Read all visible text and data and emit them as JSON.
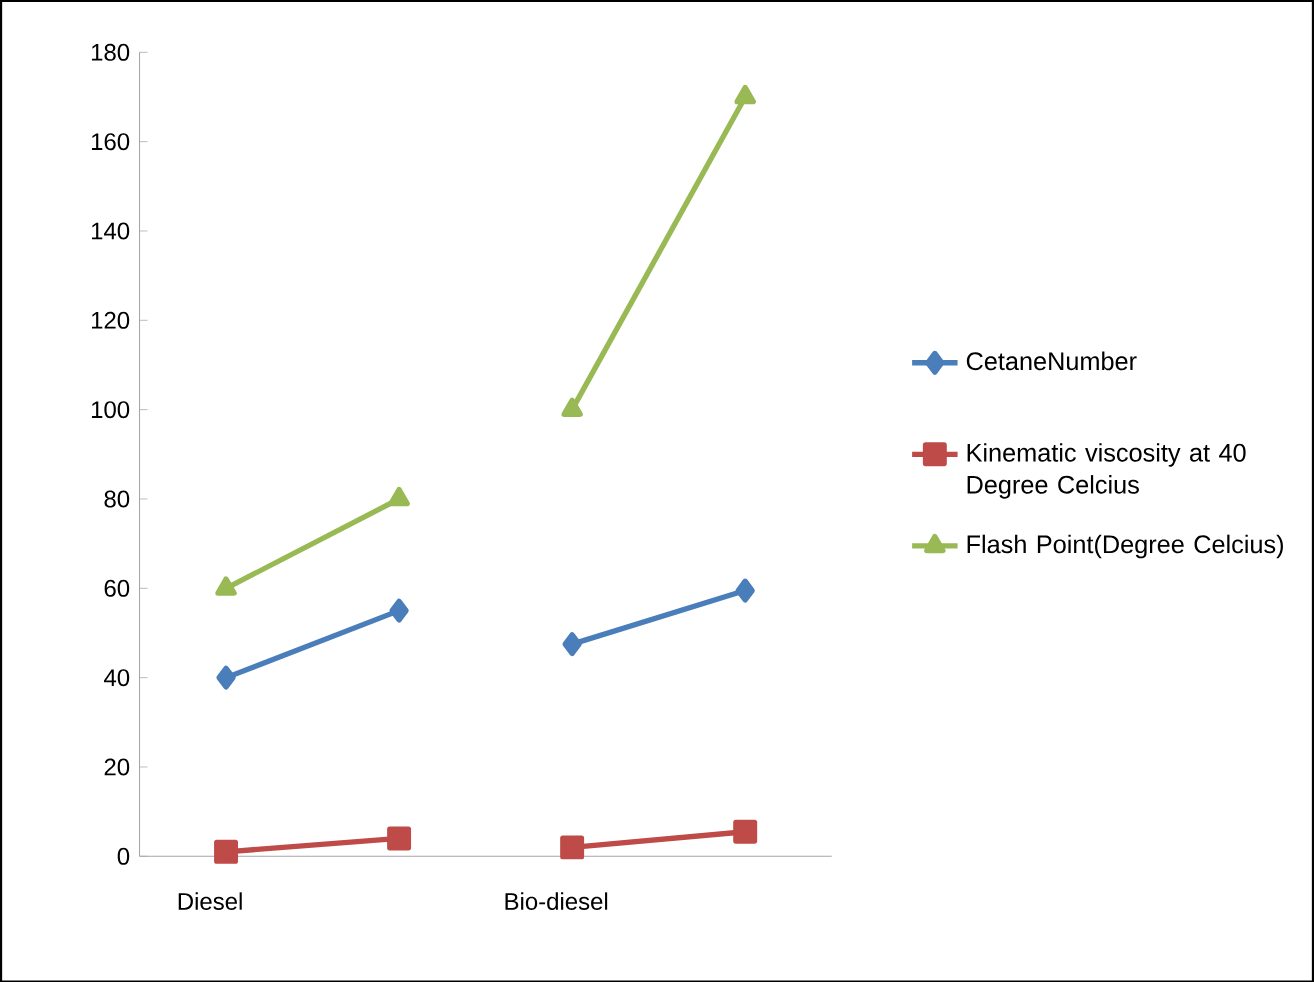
{
  "chart_data": {
    "type": "line",
    "categories": [
      "Diesel",
      null,
      "Bio-diesel",
      null
    ],
    "series": [
      {
        "name": "CetaneNumber",
        "color": "#4a7ebb",
        "marker": "diamond",
        "values": [
          40,
          55,
          47.5,
          59.5
        ]
      },
      {
        "name": "Kinematic viscosity at 40 Degree Celcius",
        "color": "#be4b48",
        "marker": "square",
        "values": [
          1,
          4,
          2,
          5.5
        ]
      },
      {
        "name": "Flash Point(Degree Celcius)",
        "color": "#98b954",
        "marker": "triangle",
        "values": [
          60,
          80,
          100,
          170
        ]
      }
    ],
    "ylim": [
      0,
      180
    ],
    "yticks": [
      0,
      20,
      40,
      60,
      80,
      100,
      120,
      140,
      160,
      180
    ],
    "grid": false,
    "legend": "right"
  }
}
